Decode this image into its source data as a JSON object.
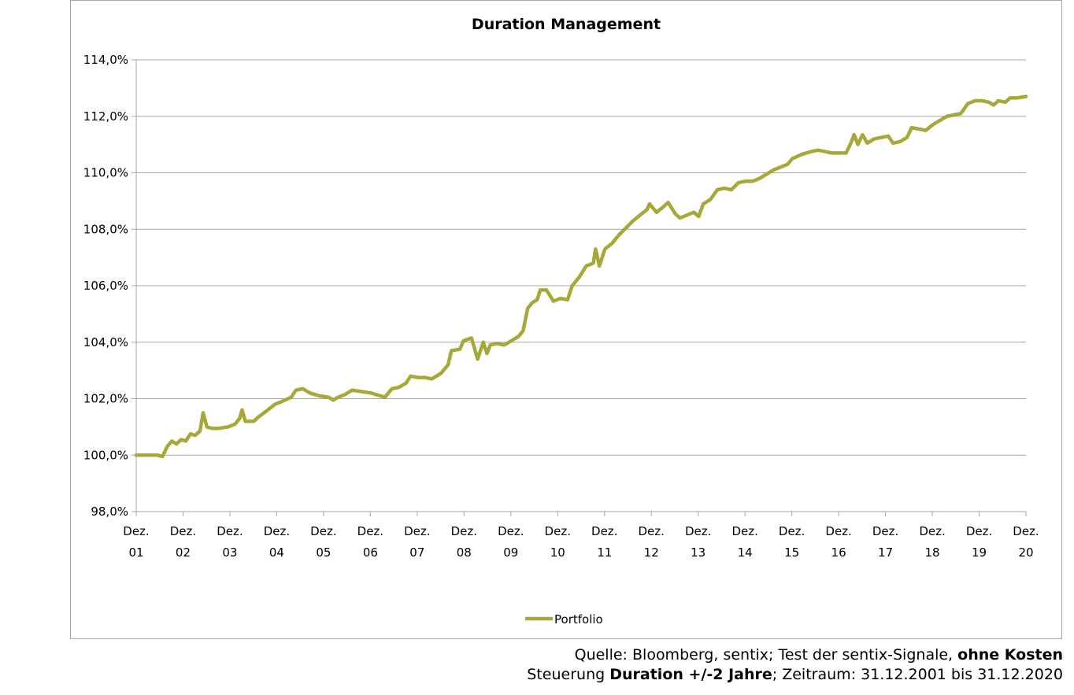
{
  "chart_data": {
    "type": "line",
    "title": "Duration Management",
    "xlabel": "",
    "ylabel": "",
    "ylim": [
      98,
      114
    ],
    "yticks": [
      "98,0%",
      "100,0%",
      "102,0%",
      "104,0%",
      "106,0%",
      "108,0%",
      "110,0%",
      "112,0%",
      "114,0%"
    ],
    "xlim": [
      2001.99,
      2020.99
    ],
    "xticks": [
      {
        "line1": "Dez.",
        "line2": "01"
      },
      {
        "line1": "Dez.",
        "line2": "02"
      },
      {
        "line1": "Dez.",
        "line2": "03"
      },
      {
        "line1": "Dez.",
        "line2": "04"
      },
      {
        "line1": "Dez.",
        "line2": "05"
      },
      {
        "line1": "Dez.",
        "line2": "06"
      },
      {
        "line1": "Dez.",
        "line2": "07"
      },
      {
        "line1": "Dez.",
        "line2": "08"
      },
      {
        "line1": "Dez.",
        "line2": "09"
      },
      {
        "line1": "Dez.",
        "line2": "10"
      },
      {
        "line1": "Dez.",
        "line2": "11"
      },
      {
        "line1": "Dez.",
        "line2": "12"
      },
      {
        "line1": "Dez.",
        "line2": "13"
      },
      {
        "line1": "Dez.",
        "line2": "14"
      },
      {
        "line1": "Dez.",
        "line2": "15"
      },
      {
        "line1": "Dez.",
        "line2": "16"
      },
      {
        "line1": "Dez.",
        "line2": "17"
      },
      {
        "line1": "Dez.",
        "line2": "18"
      },
      {
        "line1": "Dez.",
        "line2": "19"
      },
      {
        "line1": "Dez.",
        "line2": "20"
      }
    ],
    "grid": true,
    "legend_position": "bottom",
    "series": [
      {
        "name": "Portfolio",
        "color": "#a8a838",
        "points": [
          [
            2001.99,
            100.0
          ],
          [
            2002.3,
            100.0
          ],
          [
            2002.45,
            100.0
          ],
          [
            2002.55,
            99.95
          ],
          [
            2002.65,
            100.3
          ],
          [
            2002.75,
            100.5
          ],
          [
            2002.85,
            100.4
          ],
          [
            2002.95,
            100.55
          ],
          [
            2003.05,
            100.5
          ],
          [
            2003.15,
            100.75
          ],
          [
            2003.25,
            100.7
          ],
          [
            2003.35,
            100.85
          ],
          [
            2003.42,
            101.5
          ],
          [
            2003.5,
            101.0
          ],
          [
            2003.6,
            100.95
          ],
          [
            2003.75,
            100.95
          ],
          [
            2003.95,
            101.0
          ],
          [
            2004.1,
            101.1
          ],
          [
            2004.2,
            101.3
          ],
          [
            2004.25,
            101.6
          ],
          [
            2004.32,
            101.2
          ],
          [
            2004.5,
            101.2
          ],
          [
            2004.6,
            101.35
          ],
          [
            2004.8,
            101.6
          ],
          [
            2004.95,
            101.8
          ],
          [
            2005.1,
            101.9
          ],
          [
            2005.3,
            102.05
          ],
          [
            2005.4,
            102.3
          ],
          [
            2005.55,
            102.35
          ],
          [
            2005.7,
            102.2
          ],
          [
            2005.9,
            102.1
          ],
          [
            2006.1,
            102.05
          ],
          [
            2006.2,
            101.95
          ],
          [
            2006.3,
            102.05
          ],
          [
            2006.45,
            102.15
          ],
          [
            2006.6,
            102.3
          ],
          [
            2006.8,
            102.25
          ],
          [
            2007.0,
            102.2
          ],
          [
            2007.2,
            102.1
          ],
          [
            2007.3,
            102.05
          ],
          [
            2007.45,
            102.35
          ],
          [
            2007.6,
            102.4
          ],
          [
            2007.75,
            102.55
          ],
          [
            2007.85,
            102.8
          ],
          [
            2008.0,
            102.75
          ],
          [
            2008.15,
            102.75
          ],
          [
            2008.3,
            102.7
          ],
          [
            2008.5,
            102.9
          ],
          [
            2008.65,
            103.2
          ],
          [
            2008.72,
            103.7
          ],
          [
            2008.9,
            103.75
          ],
          [
            2008.98,
            104.05
          ],
          [
            2009.15,
            104.15
          ],
          [
            2009.28,
            103.4
          ],
          [
            2009.4,
            104.0
          ],
          [
            2009.48,
            103.6
          ],
          [
            2009.55,
            103.9
          ],
          [
            2009.7,
            103.95
          ],
          [
            2009.85,
            103.9
          ],
          [
            2010.0,
            104.05
          ],
          [
            2010.15,
            104.2
          ],
          [
            2010.25,
            104.4
          ],
          [
            2010.35,
            105.2
          ],
          [
            2010.45,
            105.4
          ],
          [
            2010.55,
            105.5
          ],
          [
            2010.62,
            105.85
          ],
          [
            2010.75,
            105.85
          ],
          [
            2010.9,
            105.45
          ],
          [
            2011.05,
            105.55
          ],
          [
            2011.2,
            105.5
          ],
          [
            2011.3,
            106.0
          ],
          [
            2011.45,
            106.3
          ],
          [
            2011.6,
            106.7
          ],
          [
            2011.75,
            106.8
          ],
          [
            2011.8,
            107.3
          ],
          [
            2011.88,
            106.7
          ],
          [
            2012.0,
            107.3
          ],
          [
            2012.15,
            107.5
          ],
          [
            2012.3,
            107.8
          ],
          [
            2012.45,
            108.05
          ],
          [
            2012.6,
            108.3
          ],
          [
            2012.75,
            108.5
          ],
          [
            2012.9,
            108.7
          ],
          [
            2012.95,
            108.9
          ],
          [
            2013.1,
            108.6
          ],
          [
            2013.25,
            108.8
          ],
          [
            2013.35,
            108.95
          ],
          [
            2013.5,
            108.55
          ],
          [
            2013.6,
            108.4
          ],
          [
            2013.75,
            108.5
          ],
          [
            2013.9,
            108.6
          ],
          [
            2014.0,
            108.45
          ],
          [
            2014.1,
            108.9
          ],
          [
            2014.25,
            109.05
          ],
          [
            2014.4,
            109.4
          ],
          [
            2014.55,
            109.45
          ],
          [
            2014.7,
            109.4
          ],
          [
            2014.85,
            109.65
          ],
          [
            2015.0,
            109.7
          ],
          [
            2015.15,
            109.7
          ],
          [
            2015.3,
            109.8
          ],
          [
            2015.45,
            109.95
          ],
          [
            2015.6,
            110.1
          ],
          [
            2015.75,
            110.2
          ],
          [
            2015.9,
            110.3
          ],
          [
            2016.0,
            110.5
          ],
          [
            2016.2,
            110.65
          ],
          [
            2016.4,
            110.75
          ],
          [
            2016.55,
            110.8
          ],
          [
            2016.7,
            110.75
          ],
          [
            2016.85,
            110.7
          ],
          [
            2017.0,
            110.7
          ],
          [
            2017.15,
            110.7
          ],
          [
            2017.25,
            111.05
          ],
          [
            2017.32,
            111.35
          ],
          [
            2017.4,
            111.0
          ],
          [
            2017.5,
            111.35
          ],
          [
            2017.6,
            111.05
          ],
          [
            2017.75,
            111.2
          ],
          [
            2017.9,
            111.25
          ],
          [
            2018.05,
            111.3
          ],
          [
            2018.15,
            111.05
          ],
          [
            2018.3,
            111.1
          ],
          [
            2018.45,
            111.25
          ],
          [
            2018.55,
            111.6
          ],
          [
            2018.7,
            111.55
          ],
          [
            2018.85,
            111.5
          ],
          [
            2019.0,
            111.7
          ],
          [
            2019.15,
            111.85
          ],
          [
            2019.3,
            112.0
          ],
          [
            2019.45,
            112.05
          ],
          [
            2019.6,
            112.1
          ],
          [
            2019.75,
            112.45
          ],
          [
            2019.9,
            112.55
          ],
          [
            2020.05,
            112.55
          ],
          [
            2020.2,
            112.5
          ],
          [
            2020.3,
            112.4
          ],
          [
            2020.4,
            112.55
          ],
          [
            2020.55,
            112.5
          ],
          [
            2020.65,
            112.65
          ],
          [
            2020.8,
            112.65
          ],
          [
            2020.99,
            112.7
          ]
        ]
      }
    ]
  },
  "footnote": {
    "line1_a": "Quelle: Bloomberg, sentix; Test der sentix-Signale, ",
    "line1_b": "ohne Kosten",
    "line2_a": "Steuerung ",
    "line2_b": "Duration +/-2 Jahre",
    "line2_c": "; Zeitraum: 31.12.2001 bis 31.12.2020"
  }
}
